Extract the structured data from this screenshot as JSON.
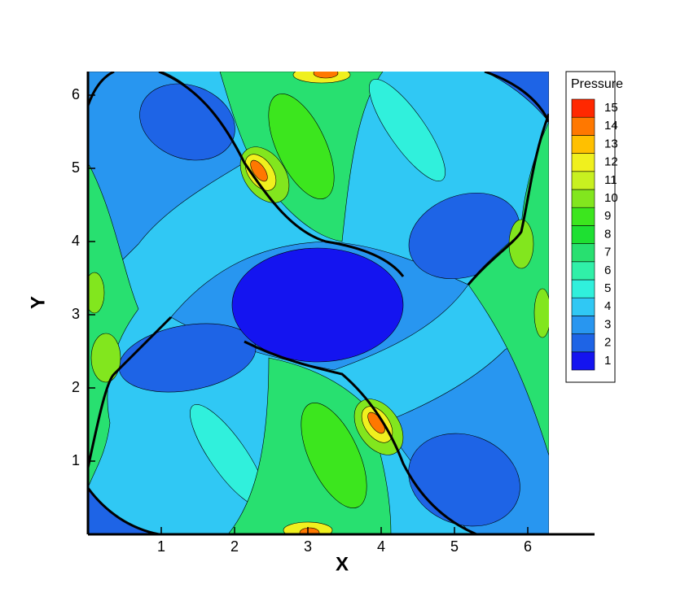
{
  "chart_data": {
    "type": "contour",
    "xlabel": "X",
    "ylabel": "Y",
    "xlim": [
      0,
      6.9
    ],
    "ylim": [
      0,
      6.32
    ],
    "xticks": [
      1,
      2,
      3,
      4,
      5,
      6
    ],
    "yticks": [
      1,
      2,
      3,
      4,
      5,
      6
    ],
    "legend": {
      "title": "Pressure",
      "position": "right",
      "levels": [
        1,
        2,
        3,
        4,
        5,
        6,
        7,
        8,
        9,
        10,
        11,
        12,
        13,
        14,
        15
      ],
      "colors": [
        "#1414f0",
        "#1e64e6",
        "#2896f0",
        "#30c8f4",
        "#30f0dc",
        "#30f0a8",
        "#28e070",
        "#1ee032",
        "#3ce61e",
        "#82e61e",
        "#c8f020",
        "#f0f01e",
        "#ffc000",
        "#ff7800",
        "#ff2800"
      ]
    }
  }
}
